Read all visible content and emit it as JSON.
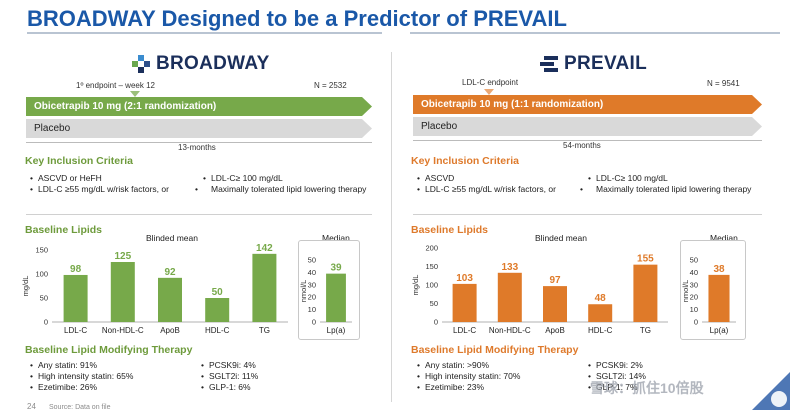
{
  "title": "BROADWAY Designed to be a Predictor of PREVAIL",
  "colors": {
    "green": "#77a94a",
    "orange": "#df7a29",
    "title_blue": "#1a58a8",
    "gray": "#d9d9d9"
  },
  "broadway": {
    "logo_text": "BROADWAY",
    "endpoint_label": "1º endpoint – week 12",
    "n_label": "N = 2532",
    "arm1": "Obicetrapib 10 mg (2:1 randomization)",
    "arm2": "Placebo",
    "duration": "13-months",
    "inclusion_title": "Key Inclusion Criteria",
    "inclusion_left": [
      "ASCVD or HeFH",
      "LDL-C ≥55 mg/dL w/risk factors, or"
    ],
    "inclusion_right": [
      "LDL-C≥ 100 mg/dL",
      "Maximally tolerated lipid lowering therapy"
    ],
    "lipids_title": "Baseline Lipids",
    "blinded_label": "Blinded mean",
    "median_label": "Median",
    "therapy_title": "Baseline Lipid Modifying Therapy",
    "therapy_left": [
      "Any statin: 91%",
      "High intensity statin: 65%",
      "Ezetimibe:  26%"
    ],
    "therapy_right": [
      "PCSK9i: 4%",
      "SGLT2i: 11%",
      "GLP-1: 6%"
    ]
  },
  "prevail": {
    "logo_text": "PREVAIL",
    "endpoint_label": "LDL-C endpoint",
    "n_label": "N = 9541",
    "arm1": "Obicetrapib 10 mg (1:1 randomization)",
    "arm2": "Placebo",
    "duration": "54-months",
    "inclusion_title": "Key Inclusion Criteria",
    "inclusion_left": [
      "ASCVD",
      "LDL-C ≥55 mg/dL w/risk factors, or"
    ],
    "inclusion_right": [
      "LDL-C≥ 100 mg/dL",
      "Maximally tolerated lipid lowering therapy"
    ],
    "lipids_title": "Baseline Lipids",
    "blinded_label": "Blinded mean",
    "median_label": "Median",
    "therapy_title": "Baseline Lipid Modifying Therapy",
    "therapy_left": [
      "Any statin: >90%",
      "High intensity statin: 70%",
      "Ezetimibe: 23%"
    ],
    "therapy_right": [
      "PCSK9i: 2%",
      "SGLT2i: 14%",
      "GLP-1: 7%"
    ]
  },
  "chart_data": [
    {
      "type": "bar",
      "id": "broadway-mgdl",
      "categories": [
        "LDL-C",
        "Non-HDL-C",
        "ApoB",
        "HDL-C",
        "TG"
      ],
      "values": [
        98,
        125,
        92,
        50,
        142
      ],
      "ylabel": "mg/dL",
      "ylim": [
        0,
        150
      ],
      "yticks": [
        0,
        50,
        100,
        150
      ],
      "color": "#77a94a"
    },
    {
      "type": "bar",
      "id": "broadway-nmol",
      "categories": [
        "Lp(a)"
      ],
      "values": [
        39
      ],
      "ylabel": "nmol/L",
      "ylim": [
        0,
        50
      ],
      "yticks": [
        0,
        10,
        20,
        30,
        40,
        50
      ],
      "color": "#77a94a"
    },
    {
      "type": "bar",
      "id": "prevail-mgdl",
      "categories": [
        "LDL-C",
        "Non-HDL-C",
        "ApoB",
        "HDL-C",
        "TG"
      ],
      "values": [
        103,
        133,
        97,
        48,
        155
      ],
      "ylabel": "mg/dL",
      "ylim": [
        0,
        200
      ],
      "yticks": [
        0,
        50,
        100,
        150,
        200
      ],
      "color": "#df7a29"
    },
    {
      "type": "bar",
      "id": "prevail-nmol",
      "categories": [
        "Lp(a)"
      ],
      "values": [
        38
      ],
      "ylabel": "nmol/L",
      "ylim": [
        0,
        50
      ],
      "yticks": [
        0,
        10,
        20,
        30,
        40,
        50
      ],
      "color": "#df7a29"
    }
  ],
  "footer": {
    "page": "24",
    "source": "Source: Data on file"
  },
  "watermark": "雪球：抓住10倍股"
}
